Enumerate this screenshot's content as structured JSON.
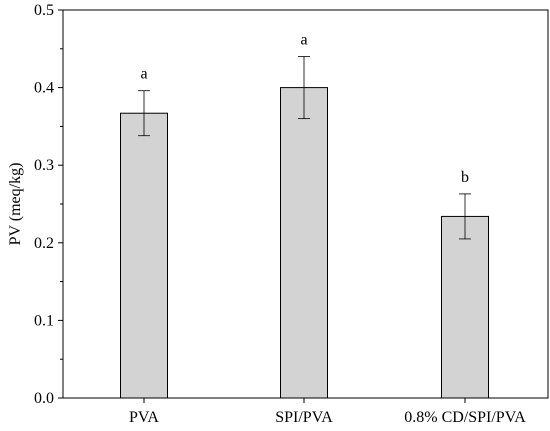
{
  "chart_data": {
    "type": "bar",
    "categories": [
      "PVA",
      "SPI/PVA",
      "0.8% CD/SPI/PVA"
    ],
    "values": [
      0.367,
      0.4,
      0.234
    ],
    "errors": [
      0.029,
      0.04,
      0.029
    ],
    "significance_letters": [
      "a",
      "a",
      "b"
    ],
    "title": "",
    "xlabel": "",
    "ylabel": "PV (meq/kg)",
    "ylim": [
      0,
      0.5
    ],
    "yticks": [
      "0.0",
      "0.1",
      "0.2",
      "0.3",
      "0.4",
      "0.5"
    ],
    "grid": false,
    "bar_color": "#d3d3d3",
    "bar_edge_color": "#000000"
  }
}
